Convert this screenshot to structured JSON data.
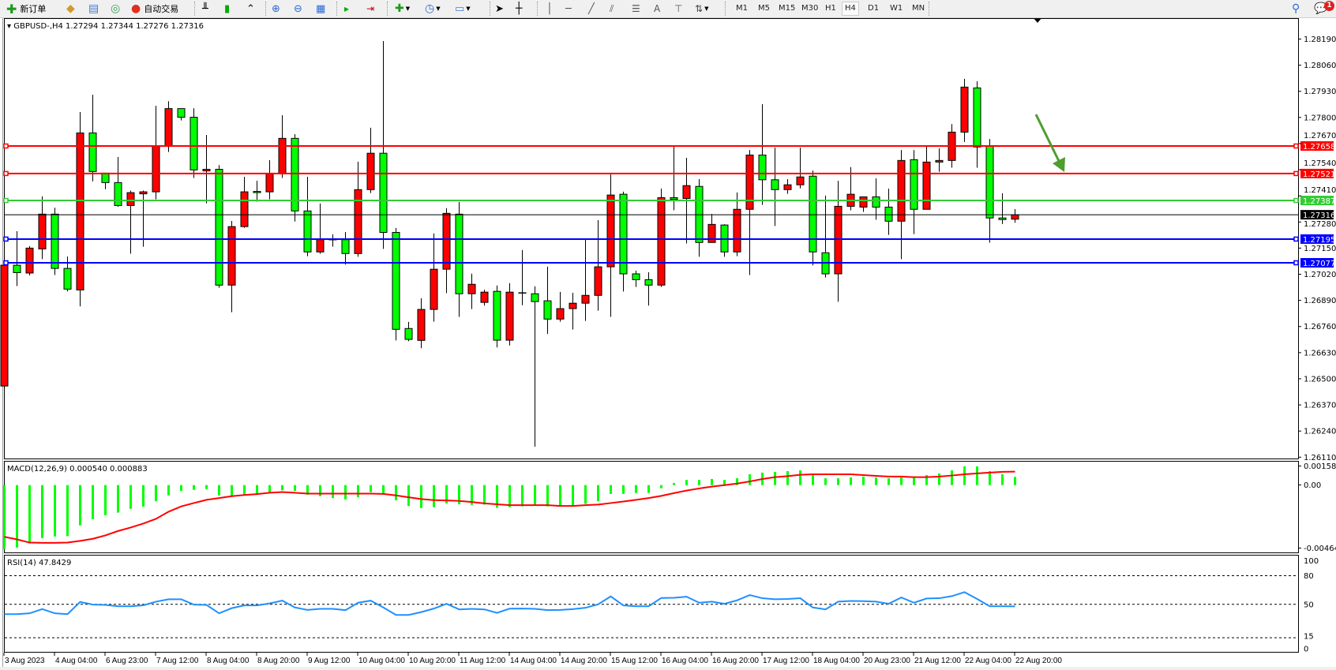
{
  "toolbar": {
    "new_order": "新订单",
    "auto_trading": "自动交易",
    "periods": [
      "M1",
      "M5",
      "M15",
      "M30",
      "H1",
      "H4",
      "D1",
      "W1",
      "MN"
    ],
    "active_period": "H4",
    "text_tool": "A",
    "notification_count": "1"
  },
  "main_panel": {
    "header": "GBPUSD-,H4  1.27294 1.27344 1.27276 1.27316"
  },
  "colors": {
    "bull": "#ff0000",
    "bear": "#00ff00",
    "macd_hist": "#00ff00",
    "macd_signal": "#ff0000",
    "rsi": "#1e90ff",
    "arrow": "#4f9d2f"
  },
  "chart_data": [
    {
      "type": "candlestick",
      "symbol": "GBPUSD-",
      "timeframe": "H4",
      "ylim": [
        1.2611,
        1.2819
      ],
      "price_ticks": [
        "1.28190",
        "1.28060",
        "1.27930",
        "1.27800",
        "1.27670",
        "1.27540",
        "1.27410",
        "1.27280",
        "1.27150",
        "1.27020",
        "1.26890",
        "1.26760",
        "1.26630",
        "1.26500",
        "1.26370",
        "1.26240",
        "1.26110"
      ],
      "time_labels": [
        "3 Aug 2023",
        "4 Aug 04:00",
        "6 Aug 23:00",
        "7 Aug 12:00",
        "8 Aug 04:00",
        "8 Aug 20:00",
        "9 Aug 12:00",
        "10 Aug 04:00",
        "10 Aug 20:00",
        "11 Aug 12:00",
        "14 Aug 04:00",
        "14 Aug 20:00",
        "15 Aug 12:00",
        "16 Aug 04:00",
        "16 Aug 20:00",
        "17 Aug 12:00",
        "18 Aug 04:00",
        "20 Aug 23:00",
        "21 Aug 12:00",
        "22 Aug 04:00",
        "22 Aug 20:00"
      ],
      "levels": [
        {
          "price": 1.27658,
          "label": "1.27658",
          "color": "#ff0000"
        },
        {
          "price": 1.27521,
          "label": "1.27521",
          "color": "#ff0000"
        },
        {
          "price": 1.27387,
          "label": "1.27387",
          "color": "#33cc33"
        },
        {
          "price": 1.27316,
          "label": "1.27316",
          "color": "#000000",
          "current": true
        },
        {
          "price": 1.27195,
          "label": "1.27195",
          "color": "#0000ff"
        },
        {
          "price": 1.27077,
          "label": "1.27077",
          "color": "#0000ff"
        }
      ],
      "ohlc": [
        [
          1.26464,
          1.27227,
          1.26365,
          1.27065
        ],
        [
          1.27065,
          1.27234,
          1.26961,
          1.27028
        ],
        [
          1.27026,
          1.2716,
          1.27014,
          1.2715
        ],
        [
          1.27146,
          1.27407,
          1.27095,
          1.27319
        ],
        [
          1.27319,
          1.27351,
          1.27016,
          1.27049
        ],
        [
          1.27049,
          1.27108,
          1.26934,
          1.26946
        ],
        [
          1.26942,
          1.27827,
          1.2686,
          1.27723
        ],
        [
          1.27723,
          1.27913,
          1.27482,
          1.27531
        ],
        [
          1.27523,
          1.27523,
          1.27443,
          1.27476
        ],
        [
          1.27476,
          1.27603,
          1.27355,
          1.27362
        ],
        [
          1.27362,
          1.27436,
          1.27122,
          1.27426
        ],
        [
          1.2742,
          1.27436,
          1.27157,
          1.2743
        ],
        [
          1.2743,
          1.27858,
          1.27393,
          1.27658
        ],
        [
          1.27658,
          1.27881,
          1.27628,
          1.27844
        ],
        [
          1.27844,
          1.27844,
          1.27785,
          1.27801
        ],
        [
          1.27801,
          1.27846,
          1.27499,
          1.27539
        ],
        [
          1.27534,
          1.27713,
          1.27373,
          1.27542
        ],
        [
          1.27542,
          1.27563,
          1.26953,
          1.26966
        ],
        [
          1.26966,
          1.27285,
          1.26831,
          1.27257
        ],
        [
          1.27257,
          1.27505,
          1.27251,
          1.2743
        ],
        [
          1.27432,
          1.27485,
          1.27381,
          1.27426
        ],
        [
          1.2743,
          1.27588,
          1.27393,
          1.2752
        ],
        [
          1.2752,
          1.27811,
          1.27499,
          1.27696
        ],
        [
          1.27696,
          1.27717,
          1.27282,
          1.27335
        ],
        [
          1.27335,
          1.27505,
          1.2711,
          1.27131
        ],
        [
          1.27131,
          1.27372,
          1.27122,
          1.27192
        ],
        [
          1.27189,
          1.27219,
          1.27157,
          1.27192
        ],
        [
          1.27192,
          1.2723,
          1.27068,
          1.27123
        ],
        [
          1.27123,
          1.2758,
          1.27107,
          1.27441
        ],
        [
          1.27441,
          1.27749,
          1.27424,
          1.27622
        ],
        [
          1.27622,
          1.2818,
          1.27146,
          1.27228
        ],
        [
          1.27228,
          1.2725,
          1.26691,
          1.26746
        ],
        [
          1.2675,
          1.26783,
          1.26687,
          1.26696
        ],
        [
          1.26691,
          1.26901,
          1.26652,
          1.26845
        ],
        [
          1.26845,
          1.27223,
          1.26784,
          1.27045
        ],
        [
          1.27045,
          1.27349,
          1.26926,
          1.27323
        ],
        [
          1.27319,
          1.2738,
          1.26808,
          1.26923
        ],
        [
          1.26923,
          1.27023,
          1.26847,
          1.2697
        ],
        [
          1.2688,
          1.26943,
          1.26864,
          1.26931
        ],
        [
          1.26935,
          1.26964,
          1.26656,
          1.26692
        ],
        [
          1.26692,
          1.26976,
          1.26666,
          1.26931
        ],
        [
          1.26926,
          1.27141,
          1.26866,
          1.26927
        ],
        [
          1.26923,
          1.2696,
          1.26162,
          1.26884
        ],
        [
          1.26888,
          1.27058,
          1.26723,
          1.26797
        ],
        [
          1.26797,
          1.26932,
          1.26784,
          1.26849
        ],
        [
          1.26849,
          1.26928,
          1.26745,
          1.26876
        ],
        [
          1.26876,
          1.27192,
          1.26788,
          1.26915
        ],
        [
          1.26915,
          1.27289,
          1.26839,
          1.27057
        ],
        [
          1.27057,
          1.27517,
          1.26808,
          1.27414
        ],
        [
          1.27418,
          1.27431,
          1.26934,
          1.27022
        ],
        [
          1.27022,
          1.27038,
          1.26957,
          1.26993
        ],
        [
          1.26993,
          1.2703,
          1.26864,
          1.26966
        ],
        [
          1.26966,
          1.27446,
          1.26957,
          1.27401
        ],
        [
          1.27401,
          1.27658,
          1.27338,
          1.27393
        ],
        [
          1.27397,
          1.27599,
          1.27173,
          1.27461
        ],
        [
          1.27457,
          1.27493,
          1.27107,
          1.27178
        ],
        [
          1.27178,
          1.2732,
          1.27178,
          1.27268
        ],
        [
          1.27265,
          1.27269,
          1.27107,
          1.27131
        ],
        [
          1.27131,
          1.27427,
          1.2711,
          1.27343
        ],
        [
          1.27343,
          1.27638,
          1.27016,
          1.27613
        ],
        [
          1.27613,
          1.27866,
          1.27365,
          1.2749
        ],
        [
          1.2749,
          1.2765,
          1.2726,
          1.27441
        ],
        [
          1.27441,
          1.27493,
          1.2742,
          1.27465
        ],
        [
          1.27465,
          1.2765,
          1.27447,
          1.27504
        ],
        [
          1.27508,
          1.27536,
          1.27064,
          1.27131
        ],
        [
          1.27127,
          1.27411,
          1.27004,
          1.27022
        ],
        [
          1.27022,
          1.27485,
          1.26883,
          1.27358
        ],
        [
          1.27358,
          1.27553,
          1.27338,
          1.27418
        ],
        [
          1.27354,
          1.27405,
          1.2733,
          1.27405
        ],
        [
          1.27405,
          1.27497,
          1.27291,
          1.27354
        ],
        [
          1.27354,
          1.27446,
          1.27216,
          1.27284
        ],
        [
          1.27284,
          1.27638,
          1.27095,
          1.27586
        ],
        [
          1.2759,
          1.27638,
          1.2722,
          1.27343
        ],
        [
          1.27343,
          1.27658,
          1.27343,
          1.27578
        ],
        [
          1.27578,
          1.27646,
          1.2753,
          1.27586
        ],
        [
          1.27586,
          1.27767,
          1.2755,
          1.27727
        ],
        [
          1.27727,
          1.27992,
          1.27678,
          1.27951
        ],
        [
          1.27947,
          1.2798,
          1.2755,
          1.27653
        ],
        [
          1.27658,
          1.27693,
          1.27177,
          1.273
        ],
        [
          1.273,
          1.27423,
          1.2727,
          1.27292
        ],
        [
          1.27294,
          1.27344,
          1.27276,
          1.27316
        ]
      ]
    },
    {
      "type": "bar",
      "label": "MACD(12,26,9) 0.000540 0.000883",
      "ylim": [
        -0.004644,
        0.001585
      ],
      "tick_labels": [
        "0.001585",
        "0.00",
        "-0.004644"
      ],
      "histogram": [
        -0.00421,
        -0.00411,
        -0.00384,
        -0.00348,
        -0.00338,
        -0.00335,
        -0.00265,
        -0.00224,
        -0.00198,
        -0.00181,
        -0.00156,
        -0.00142,
        -0.00106,
        -0.00068,
        -0.00038,
        -0.00031,
        -0.00026,
        -0.00068,
        -0.00077,
        -0.00065,
        -0.00063,
        -0.00052,
        -0.00034,
        -0.00038,
        -0.00063,
        -0.00073,
        -0.00085,
        -0.00094,
        -0.0008,
        -0.00046,
        -0.00061,
        -0.00099,
        -0.00137,
        -0.00151,
        -0.00145,
        -0.0012,
        -0.00126,
        -0.0013,
        -0.00128,
        -0.00149,
        -0.00145,
        -0.0014,
        -0.00132,
        -0.0014,
        -0.00135,
        -0.00132,
        -0.00123,
        -0.00106,
        -0.00058,
        -0.00058,
        -0.00052,
        -0.00052,
        -0.00021,
        0.00014,
        0.00034,
        0.00034,
        0.0004,
        0.00034,
        0.00045,
        0.00071,
        0.00082,
        0.00087,
        0.00092,
        0.00097,
        0.00066,
        0.00045,
        0.00045,
        0.0005,
        0.00056,
        0.0005,
        0.00045,
        0.0005,
        0.0005,
        0.00066,
        0.00077,
        0.00097,
        0.00123,
        0.00123,
        0.00092,
        0.00071,
        0.00054
      ],
      "signal": [
        -0.0034,
        -0.00357,
        -0.00378,
        -0.0038,
        -0.0038,
        -0.00378,
        -0.00367,
        -0.00353,
        -0.00331,
        -0.00302,
        -0.00279,
        -0.00253,
        -0.00222,
        -0.00175,
        -0.0014,
        -0.00118,
        -0.00097,
        -0.00085,
        -0.00073,
        -0.00065,
        -0.00059,
        -0.0005,
        -0.00046,
        -0.0005,
        -0.00056,
        -0.00056,
        -0.00056,
        -0.00056,
        -0.00056,
        -0.00056,
        -0.00058,
        -0.00068,
        -0.0008,
        -0.00092,
        -0.00099,
        -0.00101,
        -0.00104,
        -0.00111,
        -0.0012,
        -0.00126,
        -0.00132,
        -0.00132,
        -0.00132,
        -0.00132,
        -0.00137,
        -0.00137,
        -0.00132,
        -0.00128,
        -0.00118,
        -0.00108,
        -0.00097,
        -0.00085,
        -0.00071,
        -0.00053,
        -0.00036,
        -0.00022,
        -0.0001,
        0,
        0.0001,
        0.00024,
        0.0004,
        0.00052,
        0.00059,
        0.00068,
        0.00071,
        0.00071,
        0.00071,
        0.00071,
        0.00066,
        0.00061,
        0.00056,
        0.00056,
        0.00052,
        0.00052,
        0.00056,
        0.00063,
        0.00071,
        0.00077,
        0.00082,
        0.00087,
        0.000883
      ]
    },
    {
      "type": "line",
      "label": "RSI(14) 47.8429",
      "ylim": [
        0,
        100
      ],
      "levels": [
        80,
        50,
        15
      ],
      "tick_labels": [
        "100",
        "80",
        "50",
        "15",
        "0"
      ],
      "values": [
        39.7,
        39.7,
        40.6,
        45,
        40.6,
        39.7,
        52.5,
        49.7,
        49.4,
        48,
        48,
        49,
        52.8,
        55.3,
        55.3,
        49.7,
        49.4,
        40.6,
        46,
        48.9,
        48.9,
        51,
        53.9,
        46.7,
        44.2,
        45.3,
        45.3,
        43.9,
        51.7,
        53.9,
        46.7,
        38.9,
        38.9,
        41.9,
        45.6,
        50.6,
        44.7,
        45.3,
        44.7,
        41.1,
        45.5,
        45.6,
        45.3,
        43.9,
        44.2,
        45,
        46.4,
        50,
        58.3,
        48.9,
        48,
        48,
        56.7,
        56.9,
        58,
        51.7,
        52.8,
        50.6,
        54.2,
        59.7,
        56.4,
        55.3,
        55.6,
        56.4,
        46.7,
        44.7,
        52.8,
        53.6,
        53.3,
        52.8,
        50.6,
        57.2,
        51.7,
        56.1,
        56.4,
        58.6,
        62.8,
        55.6,
        48,
        48,
        47.8429
      ]
    }
  ]
}
